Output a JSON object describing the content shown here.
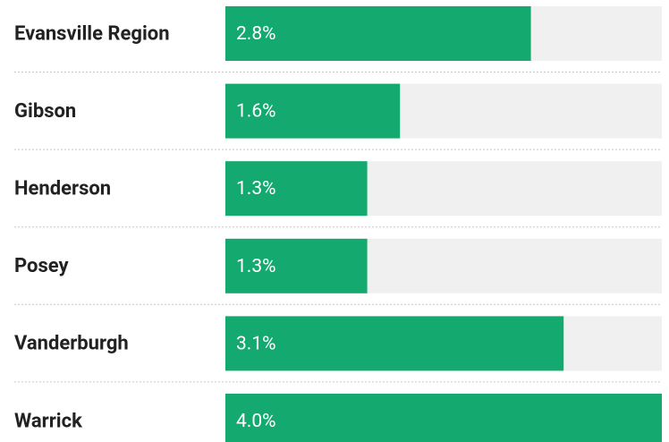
{
  "chart_data": {
    "type": "bar",
    "orientation": "horizontal",
    "categories": [
      "Evansville Region",
      "Gibson",
      "Henderson",
      "Posey",
      "Vanderburgh",
      "Warrick"
    ],
    "values": [
      2.8,
      1.6,
      1.3,
      1.3,
      3.1,
      4.0
    ],
    "value_labels": [
      "2.8%",
      "1.6%",
      "1.3%",
      "1.3%",
      "3.1%",
      "4.0%"
    ],
    "color": "#14a96f",
    "xlim": [
      0,
      4
    ]
  }
}
